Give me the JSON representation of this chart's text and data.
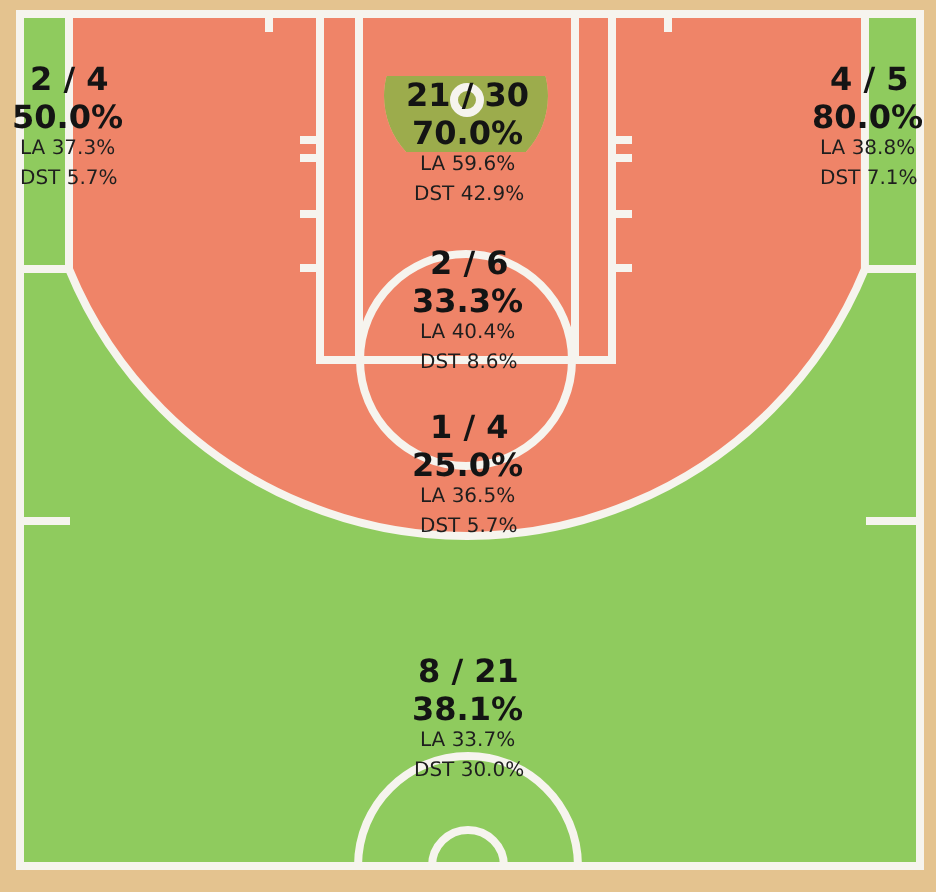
{
  "chart_data": {
    "type": "other",
    "categories": [
      null,
      null,
      null,
      null,
      null,
      null
    ],
    "values": [
      50.0,
      70.0,
      80.0,
      33.3,
      25.0,
      38.1
    ],
    "value_labels": [
      "50.0%",
      "70.0%",
      "80.0%",
      "33.3%",
      "25.0%",
      "38.1%"
    ],
    "colors": [
      "#8fcb5e",
      "#9cac4c",
      "#8fcb5e",
      "#ef8468",
      "#ef8468",
      "#8fcb5e"
    ],
    "annotations": [
      "2 / 4",
      "LA 37.3%",
      "DST 5.7%",
      "21 / 30",
      "LA 59.6%",
      "DST 42.9%",
      "4 / 5",
      "LA 38.8%",
      "DST 7.1%",
      "2 / 6",
      "LA 40.4%",
      "DST 8.6%",
      "1 / 4",
      "LA 36.5%",
      "DST 5.7%",
      "8 / 21",
      "LA 33.7%",
      "DST 30.0%"
    ]
  }
}
